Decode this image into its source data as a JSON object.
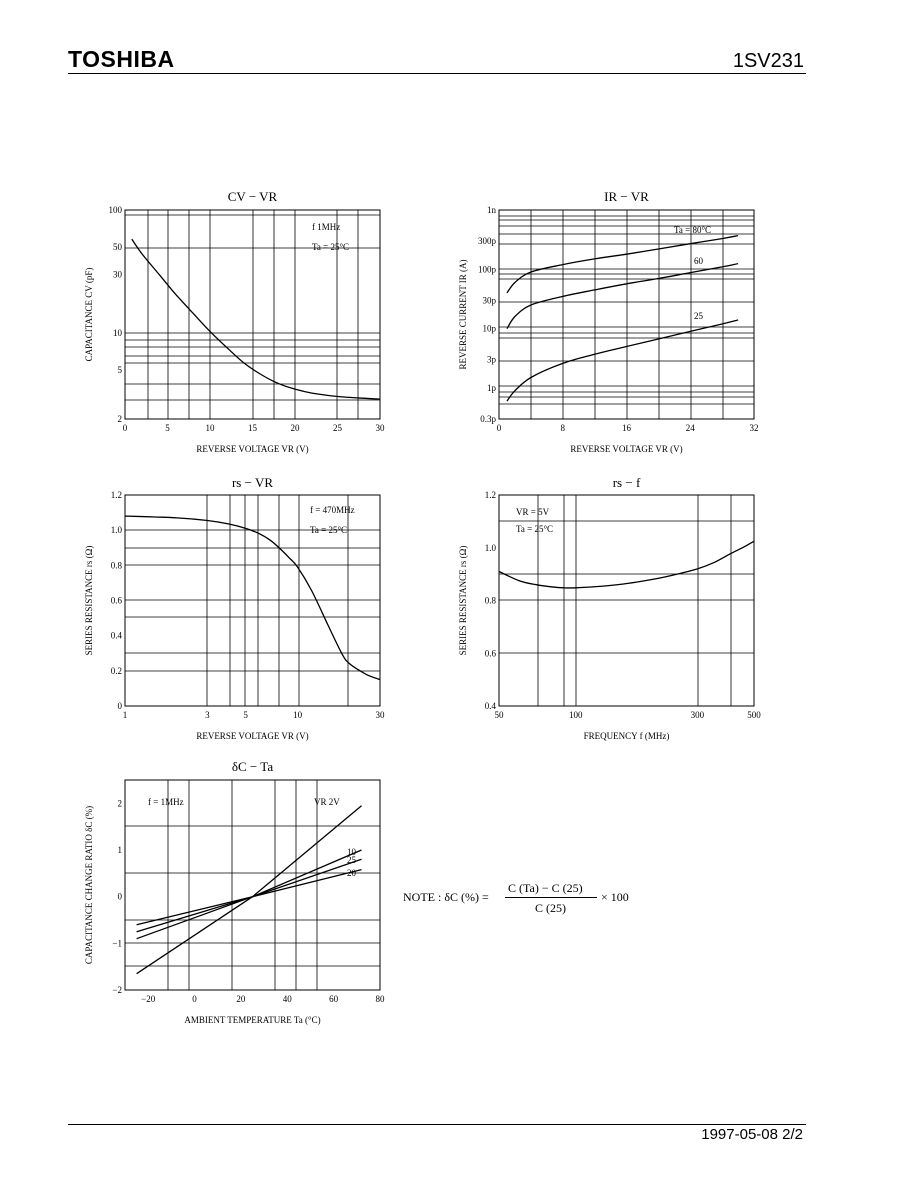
{
  "header": {
    "brand": "TOSHIBA",
    "part_number": "1SV231"
  },
  "footer": {
    "date_page": "1997-05-08   2/2"
  },
  "note": {
    "label": "NOTE : δC (%) =",
    "numerator": "C (Ta) − C (25)",
    "denominator": "C (25)",
    "multiplier": "× 100"
  },
  "chart_data": [
    {
      "id": "cv_vr",
      "type": "line",
      "title": "CV − VR",
      "xlabel": "REVERSE VOLTAGE   VR  (V)",
      "ylabel": "CAPACITANCE   CV   (pF)",
      "x_scale": "linear",
      "y_scale": "log",
      "xlim": [
        0,
        30
      ],
      "ylim": [
        2,
        100
      ],
      "xticks": [
        0,
        5,
        10,
        15,
        20,
        25,
        30
      ],
      "xtick_labels": [
        "0",
        "5",
        "10",
        "15",
        "20",
        "25",
        "30"
      ],
      "yticks": [
        2,
        5,
        10,
        30,
        50,
        100
      ],
      "ytick_labels": [
        "2",
        "5",
        "10",
        "30",
        "50",
        "100"
      ],
      "annotations": [
        "f   1MHz",
        "Ta = 25°C"
      ],
      "series": [
        {
          "x": [
            0.8,
            2,
            4,
            6,
            8,
            10,
            12,
            14,
            16,
            18,
            20,
            22,
            25,
            28,
            30
          ],
          "y": [
            58,
            44,
            30,
            20.5,
            14.5,
            10.3,
            7.6,
            5.7,
            4.6,
            3.9,
            3.5,
            3.25,
            3.05,
            2.95,
            2.9
          ]
        }
      ]
    },
    {
      "id": "ir_vr",
      "type": "line",
      "title": "IR − VR",
      "xlabel": "REVERSE VOLTAGE   VR  (V)",
      "ylabel": "REVERSE CURRENT   IR   (A)",
      "x_scale": "linear",
      "y_scale": "log",
      "xlim": [
        0,
        32
      ],
      "ylim": [
        3e-13,
        1e-09
      ],
      "xticks": [
        0,
        8,
        16,
        24,
        32
      ],
      "xtick_labels": [
        "0",
        "8",
        "16",
        "24",
        "32"
      ],
      "yticks": [
        3e-13,
        1e-12,
        3e-12,
        1e-11,
        3e-11,
        1e-10,
        3e-10,
        1e-09
      ],
      "ytick_labels": [
        "0.3p",
        "1p",
        "3p",
        "10p",
        "30p",
        "100p",
        "300p",
        "1n"
      ],
      "series": [
        {
          "name": "Ta = 80°C",
          "x": [
            1,
            2,
            4,
            8,
            12,
            16,
            20,
            24,
            28,
            30
          ],
          "y": [
            4e-11,
            6e-11,
            9e-11,
            1.2e-10,
            1.5e-10,
            1.8e-10,
            2.2e-10,
            2.7e-10,
            3.3e-10,
            3.7e-10
          ]
        },
        {
          "name": "60",
          "x": [
            1,
            2,
            4,
            8,
            12,
            16,
            20,
            24,
            28,
            30
          ],
          "y": [
            1e-11,
            1.6e-11,
            2.5e-11,
            3.5e-11,
            4.5e-11,
            5.7e-11,
            7e-11,
            8.8e-11,
            1.1e-10,
            1.25e-10
          ]
        },
        {
          "name": "25",
          "x": [
            1,
            2,
            4,
            8,
            12,
            16,
            20,
            24,
            28,
            30
          ],
          "y": [
            6e-13,
            9e-13,
            1.5e-12,
            2.6e-12,
            3.7e-12,
            5e-12,
            6.7e-12,
            9e-12,
            1.2e-11,
            1.4e-11
          ]
        }
      ]
    },
    {
      "id": "rs_vr",
      "type": "line",
      "title": "rs − VR",
      "xlabel": "REVERSE VOLTAGE   VR  (V)",
      "ylabel": "SERIES RESISTANCE   rs   (Ω)",
      "x_scale": "log",
      "y_scale": "linear",
      "xlim": [
        1,
        30
      ],
      "ylim": [
        0,
        1.2
      ],
      "xticks": [
        1,
        3,
        5,
        10,
        30
      ],
      "xtick_labels": [
        "1",
        "3",
        "5",
        "10",
        "30"
      ],
      "yticks": [
        0,
        0.2,
        0.4,
        0.6,
        0.8,
        1.0,
        1.2
      ],
      "ytick_labels": [
        "0",
        "0.2",
        "0.4",
        "0.6",
        "0.8",
        "1.0",
        "1.2"
      ],
      "annotations": [
        "f = 470MHz",
        "Ta = 25°C"
      ],
      "series": [
        {
          "x": [
            1,
            1.5,
            2,
            3,
            4,
            5,
            6,
            7,
            8,
            9,
            10,
            12,
            15,
            18,
            20,
            25,
            30
          ],
          "y": [
            1.08,
            1.075,
            1.07,
            1.055,
            1.035,
            1.01,
            0.98,
            0.94,
            0.89,
            0.84,
            0.79,
            0.66,
            0.46,
            0.3,
            0.24,
            0.18,
            0.15
          ]
        }
      ]
    },
    {
      "id": "rs_f",
      "type": "line",
      "title": "rs − f",
      "xlabel": "FREQUENCY   f   (MHz)",
      "ylabel": "SERIES RESISTANCE   rs   (Ω)",
      "x_scale": "log",
      "y_scale": "linear",
      "xlim": [
        50,
        500
      ],
      "ylim": [
        0.4,
        1.2
      ],
      "xticks": [
        50,
        100,
        300,
        500
      ],
      "xtick_labels": [
        "50",
        "100",
        "300",
        "500"
      ],
      "yticks": [
        0.4,
        0.6,
        0.8,
        1.0,
        1.2
      ],
      "ytick_labels": [
        "0.4",
        "0.6",
        "0.8",
        "1.0",
        "1.2"
      ],
      "annotations": [
        "VR = 5V",
        "Ta = 25°C"
      ],
      "series": [
        {
          "x": [
            50,
            60,
            70,
            80,
            90,
            100,
            130,
            160,
            200,
            250,
            300,
            350,
            400,
            450,
            500
          ],
          "y": [
            0.91,
            0.875,
            0.86,
            0.852,
            0.848,
            0.848,
            0.855,
            0.865,
            0.88,
            0.9,
            0.92,
            0.945,
            0.975,
            1.0,
            1.025
          ]
        }
      ]
    },
    {
      "id": "dc_ta",
      "type": "line",
      "title": "δC − Ta",
      "xlabel": "AMBIENT TEMPERATURE   Ta   (°C)",
      "ylabel": "CAPACITANCE CHANGE RATIO   δC   (%)",
      "x_scale": "linear",
      "y_scale": "linear",
      "xlim": [
        -30,
        80
      ],
      "ylim": [
        -2,
        2.5
      ],
      "xticks": [
        -20,
        0,
        20,
        40,
        60,
        80
      ],
      "xtick_labels": [
        "−20",
        "0",
        "20",
        "40",
        "60",
        "80"
      ],
      "yticks": [
        -2,
        -1,
        0,
        1,
        2
      ],
      "ytick_labels": [
        "−2",
        "−1",
        "0",
        "1",
        "2"
      ],
      "annotations": [
        "f = 1MHz",
        "VR  2V"
      ],
      "series": [
        {
          "name": "2V",
          "x": [
            -25,
            25,
            72
          ],
          "y": [
            -1.65,
            0,
            1.95
          ]
        },
        {
          "name": "10",
          "x": [
            -25,
            25,
            72
          ],
          "y": [
            -0.9,
            0,
            1.0
          ]
        },
        {
          "name": "25",
          "x": [
            -25,
            25,
            72
          ],
          "y": [
            -0.75,
            0,
            0.8
          ]
        },
        {
          "name": "20",
          "x": [
            -25,
            25,
            72
          ],
          "y": [
            -0.6,
            0,
            0.58
          ]
        }
      ]
    }
  ]
}
